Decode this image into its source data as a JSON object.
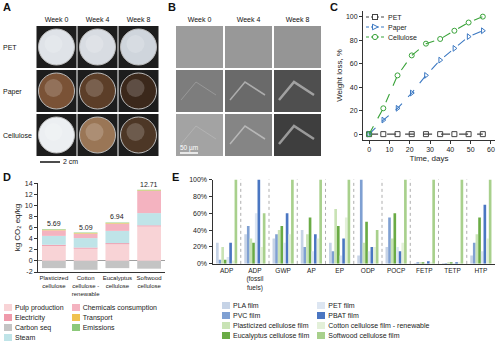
{
  "image_panels": [
    {
      "panel": "A",
      "columns": [
        "Week 0",
        "Week 4",
        "Week 8"
      ],
      "rows": [
        "PET",
        "Paper",
        "Cellulose"
      ],
      "scale_bar": "2 cm"
    },
    {
      "panel": "B",
      "columns": [
        "Week 0",
        "Week 4",
        "Week 8"
      ],
      "scale_bar": "50 µm"
    }
  ],
  "chart_data": [
    {
      "panel": "C",
      "type": "line",
      "x_label": "Time, days",
      "y_label": "Weight loss, %",
      "x": [
        0,
        7,
        14,
        21,
        28,
        35,
        42,
        49,
        56
      ],
      "series": [
        {
          "name": "PET",
          "color": "#444444",
          "marker": "square",
          "line_style": "dash",
          "values": [
            0,
            0,
            0,
            0,
            0,
            0,
            0,
            0,
            0
          ]
        },
        {
          "name": "Paper",
          "color": "#3b78c2",
          "marker": "triangle-right",
          "line_style": "dash",
          "values": [
            0,
            12,
            22,
            35,
            50,
            63,
            73,
            83,
            88
          ]
        },
        {
          "name": "Cellulose",
          "color": "#3aa33a",
          "marker": "circle",
          "line_style": "dash",
          "values": [
            0,
            22,
            50,
            67,
            77,
            81,
            88,
            95,
            100
          ]
        }
      ],
      "xlim": [
        -3,
        62
      ],
      "xticks": [
        0,
        10,
        20,
        30,
        40,
        50,
        60
      ],
      "ylim": [
        -5,
        105
      ],
      "yticks": [
        0,
        20,
        40,
        60,
        80,
        100
      ],
      "grid": false
    },
    {
      "panel": "D",
      "type": "bar",
      "stacked": true,
      "y_label": "kg CO₂ eq/kg",
      "categories": [
        "Plasticized cellulose",
        "Cotton cellulose - renewable",
        "Eucalyptus cellulose",
        "Softwood cellulose"
      ],
      "series": [
        {
          "name": "Pulp production",
          "color": "#f8d3d6",
          "values": [
            2.7,
            2.2,
            3.0,
            6.2
          ]
        },
        {
          "name": "Electricity",
          "color": "#ef9aab",
          "values": [
            0.2,
            0.2,
            0.2,
            0.2
          ]
        },
        {
          "name": "Carbon seq",
          "color": "#c4c4c4",
          "values": [
            -1.3,
            -1.6,
            -1.3,
            -1.4
          ]
        },
        {
          "name": "Steam",
          "color": "#bfe4e8",
          "values": [
            1.6,
            1.7,
            2.2,
            2.2
          ]
        },
        {
          "name": "Chemicals consumption",
          "color": "#f4b3c0",
          "values": [
            1.0,
            0.8,
            1.3,
            4.0
          ]
        },
        {
          "name": "Transport",
          "color": "#f0c24f",
          "values": [
            0.1,
            0.1,
            0.1,
            0.1
          ]
        },
        {
          "name": "Emissions",
          "color": "#8cc97a",
          "values": [
            0.1,
            0.1,
            0.1,
            0.1
          ]
        }
      ],
      "totals": [
        5.69,
        5.09,
        6.94,
        12.71
      ],
      "ylim": [
        -2,
        14
      ],
      "yticks": [
        -2,
        0,
        2,
        4,
        6,
        8,
        10,
        12,
        14
      ],
      "grid": false
    },
    {
      "panel": "E",
      "type": "bar",
      "categories": [
        "ADP",
        "ADP (fossil fuels)",
        "GWP",
        "AP",
        "EP",
        "ODP",
        "POCP",
        "FETP",
        "TETP",
        "HTP"
      ],
      "series": [
        {
          "name": "PLA film",
          "color": "#c6d3e6",
          "values": [
            25,
            35,
            30,
            40,
            25,
            10,
            20,
            1,
            1,
            10
          ]
        },
        {
          "name": "PVC film",
          "color": "#7fa0d2",
          "values": [
            5,
            45,
            35,
            20,
            15,
            100,
            55,
            2,
            1,
            25
          ]
        },
        {
          "name": "Plasticized cellulose film",
          "color": "#c9e3b5",
          "values": [
            20,
            30,
            40,
            35,
            65,
            25,
            30,
            2,
            2,
            35
          ]
        },
        {
          "name": "Eucalyptus cellulose film",
          "color": "#6aab45",
          "values": [
            5,
            25,
            45,
            55,
            45,
            50,
            60,
            2,
            2,
            55
          ]
        },
        {
          "name": "PET film",
          "color": "#dde6f2",
          "values": [
            8,
            60,
            25,
            15,
            10,
            15,
            20,
            1,
            1,
            15
          ]
        },
        {
          "name": "PBAT film",
          "color": "#4a76c2",
          "values": [
            25,
            100,
            60,
            35,
            30,
            20,
            15,
            3,
            2,
            70
          ]
        },
        {
          "name": "Cotton cellulose film - renewable",
          "color": "#e3f0d9",
          "values": [
            4,
            20,
            35,
            30,
            55,
            20,
            25,
            2,
            2,
            30
          ]
        },
        {
          "name": "Softwood cellulose film",
          "color": "#a8d08c",
          "values": [
            100,
            60,
            100,
            100,
            100,
            40,
            100,
            100,
            100,
            100
          ]
        }
      ],
      "ylim": [
        0,
        100
      ],
      "yticks": [
        {
          "value": 0,
          "label": "0%"
        },
        {
          "value": 20,
          "label": "20%"
        },
        {
          "value": 40,
          "label": "40%"
        },
        {
          "value": 60,
          "label": "60%"
        },
        {
          "value": 80,
          "label": "80%"
        },
        {
          "value": 100,
          "label": "100%"
        }
      ],
      "grid": false
    }
  ]
}
